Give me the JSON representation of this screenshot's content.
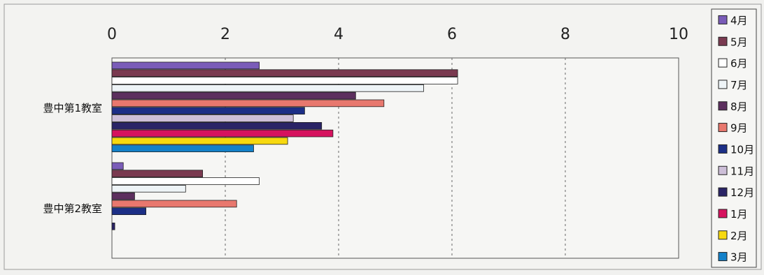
{
  "chart_data": {
    "type": "bar",
    "orientation": "horizontal",
    "title": "",
    "xlabel": "",
    "ylabel": "",
    "xlim": [
      0,
      10
    ],
    "x_ticks": [
      "0",
      "2",
      "4",
      "6",
      "8",
      "10"
    ],
    "x_axis_position": "top",
    "grid": "vertical dashed",
    "legend_position": "right",
    "categories": [
      "豊中第1教室",
      "豊中第2教室"
    ],
    "series": [
      {
        "name": "4月",
        "color": "#7a5cb8",
        "values": [
          2.6,
          0.2
        ]
      },
      {
        "name": "5月",
        "color": "#7a3a50",
        "values": [
          6.1,
          1.6
        ]
      },
      {
        "name": "6月",
        "color": "#ffffff",
        "values": [
          6.1,
          2.6
        ]
      },
      {
        "name": "7月",
        "color": "#eef4f7",
        "values": [
          5.5,
          1.3
        ]
      },
      {
        "name": "8月",
        "color": "#5c2f5e",
        "values": [
          4.3,
          0.4
        ]
      },
      {
        "name": "9月",
        "color": "#e8786e",
        "values": [
          4.8,
          2.2
        ]
      },
      {
        "name": "10月",
        "color": "#1c2f86",
        "values": [
          3.4,
          0.6
        ]
      },
      {
        "name": "11月",
        "color": "#cdbfd8",
        "values": [
          3.2,
          0.0
        ]
      },
      {
        "name": "12月",
        "color": "#2a2466",
        "values": [
          3.7,
          0.05
        ]
      },
      {
        "name": "1月",
        "color": "#d6125e",
        "values": [
          3.9,
          0.0
        ]
      },
      {
        "name": "2月",
        "color": "#f7d90f",
        "values": [
          3.1,
          0.0
        ]
      },
      {
        "name": "3月",
        "color": "#1381c9",
        "values": [
          2.5,
          0.0
        ]
      }
    ]
  }
}
